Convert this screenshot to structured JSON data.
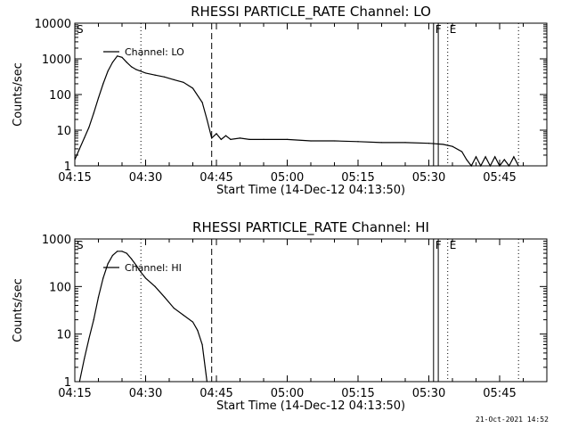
{
  "footer_timestamp": "21-Oct-2021 14:52",
  "chart_data": [
    {
      "type": "line",
      "title": "RHESSI PARTICLE_RATE Channel: LO",
      "xlabel": "Start Time (14-Dec-12 04:13:50)",
      "ylabel": "Counts/sec",
      "y_scale": "log",
      "ylim": [
        1,
        10000
      ],
      "xlim": [
        "04:15",
        "05:55"
      ],
      "x_ticks": [
        "04:15",
        "04:30",
        "04:45",
        "05:00",
        "05:15",
        "05:30",
        "05:45"
      ],
      "y_ticks": [
        "1",
        "10",
        "100",
        "1000",
        "10000"
      ],
      "legend": "Channel: LO",
      "legend_position": "top-left",
      "grid": false,
      "markers": [
        {
          "label": "S",
          "time": "04:15",
          "style": "dashed"
        },
        {
          "label": "",
          "time": "04:29",
          "style": "dotted"
        },
        {
          "label": "",
          "time": "04:44",
          "style": "dashed"
        },
        {
          "label": "F",
          "time": "05:31",
          "style": "solid"
        },
        {
          "label": "",
          "time": "05:32",
          "style": "solid"
        },
        {
          "label": "E",
          "time": "05:34",
          "style": "dotted"
        },
        {
          "label": "",
          "time": "05:49",
          "style": "dotted"
        }
      ],
      "series": [
        {
          "name": "Channel: LO",
          "points": [
            [
              "04:15",
              1.5
            ],
            [
              "04:16",
              3
            ],
            [
              "04:17",
              6
            ],
            [
              "04:18",
              12
            ],
            [
              "04:19",
              30
            ],
            [
              "04:20",
              80
            ],
            [
              "04:21",
              200
            ],
            [
              "04:22",
              450
            ],
            [
              "04:23",
              800
            ],
            [
              "04:24",
              1200
            ],
            [
              "04:25",
              1100
            ],
            [
              "04:26",
              800
            ],
            [
              "04:27",
              600
            ],
            [
              "04:28",
              500
            ],
            [
              "04:29",
              450
            ],
            [
              "04:30",
              400
            ],
            [
              "04:32",
              350
            ],
            [
              "04:34",
              310
            ],
            [
              "04:36",
              260
            ],
            [
              "04:38",
              220
            ],
            [
              "04:40",
              150
            ],
            [
              "04:42",
              60
            ],
            [
              "04:43",
              20
            ],
            [
              "04:44",
              6
            ],
            [
              "04:45",
              8
            ],
            [
              "04:46",
              5.5
            ],
            [
              "04:47",
              7
            ],
            [
              "04:48",
              5.5
            ],
            [
              "04:50",
              6
            ],
            [
              "04:52",
              5.5
            ],
            [
              "04:55",
              5.5
            ],
            [
              "05:00",
              5.5
            ],
            [
              "05:05",
              5
            ],
            [
              "05:10",
              5
            ],
            [
              "05:15",
              4.8
            ],
            [
              "05:20",
              4.5
            ],
            [
              "05:25",
              4.5
            ],
            [
              "05:30",
              4.3
            ],
            [
              "05:33",
              4
            ],
            [
              "05:35",
              3.5
            ],
            [
              "05:37",
              2.5
            ],
            [
              "05:38",
              1.5
            ],
            [
              "05:39",
              1
            ],
            [
              "05:40",
              1.8
            ],
            [
              "05:41",
              1
            ],
            [
              "05:42",
              1.8
            ],
            [
              "05:43",
              1
            ],
            [
              "05:44",
              1.8
            ],
            [
              "05:45",
              1
            ],
            [
              "05:46",
              1.5
            ],
            [
              "05:47",
              1
            ],
            [
              "05:48",
              1.8
            ],
            [
              "05:49",
              1
            ]
          ]
        }
      ]
    },
    {
      "type": "line",
      "title": "RHESSI PARTICLE_RATE Channel: HI",
      "xlabel": "Start Time (14-Dec-12 04:13:50)",
      "ylabel": "Counts/sec",
      "y_scale": "log",
      "ylim": [
        1,
        1000
      ],
      "xlim": [
        "04:15",
        "05:55"
      ],
      "x_ticks": [
        "04:15",
        "04:30",
        "04:45",
        "05:00",
        "05:15",
        "05:30",
        "05:45"
      ],
      "y_ticks": [
        "1",
        "10",
        "100",
        "1000"
      ],
      "legend": "Channel: HI",
      "legend_position": "top-left",
      "grid": false,
      "markers": [
        {
          "label": "S",
          "time": "04:15",
          "style": "dashed"
        },
        {
          "label": "",
          "time": "04:29",
          "style": "dotted"
        },
        {
          "label": "",
          "time": "04:44",
          "style": "dashed"
        },
        {
          "label": "F",
          "time": "05:31",
          "style": "solid"
        },
        {
          "label": "",
          "time": "05:32",
          "style": "solid"
        },
        {
          "label": "E",
          "time": "05:34",
          "style": "dotted"
        },
        {
          "label": "",
          "time": "05:49",
          "style": "dotted"
        }
      ],
      "series": [
        {
          "name": "Channel: HI",
          "points": [
            [
              "04:16",
              1
            ],
            [
              "04:17",
              3
            ],
            [
              "04:18",
              8
            ],
            [
              "04:19",
              20
            ],
            [
              "04:20",
              60
            ],
            [
              "04:21",
              150
            ],
            [
              "04:22",
              300
            ],
            [
              "04:23",
              450
            ],
            [
              "04:24",
              550
            ],
            [
              "04:25",
              550
            ],
            [
              "04:26",
              500
            ],
            [
              "04:27",
              380
            ],
            [
              "04:28",
              280
            ],
            [
              "04:29",
              200
            ],
            [
              "04:30",
              150
            ],
            [
              "04:32",
              100
            ],
            [
              "04:34",
              60
            ],
            [
              "04:36",
              35
            ],
            [
              "04:38",
              25
            ],
            [
              "04:40",
              18
            ],
            [
              "04:41",
              12
            ],
            [
              "04:42",
              6
            ],
            [
              "04:43",
              1
            ]
          ]
        }
      ]
    }
  ]
}
